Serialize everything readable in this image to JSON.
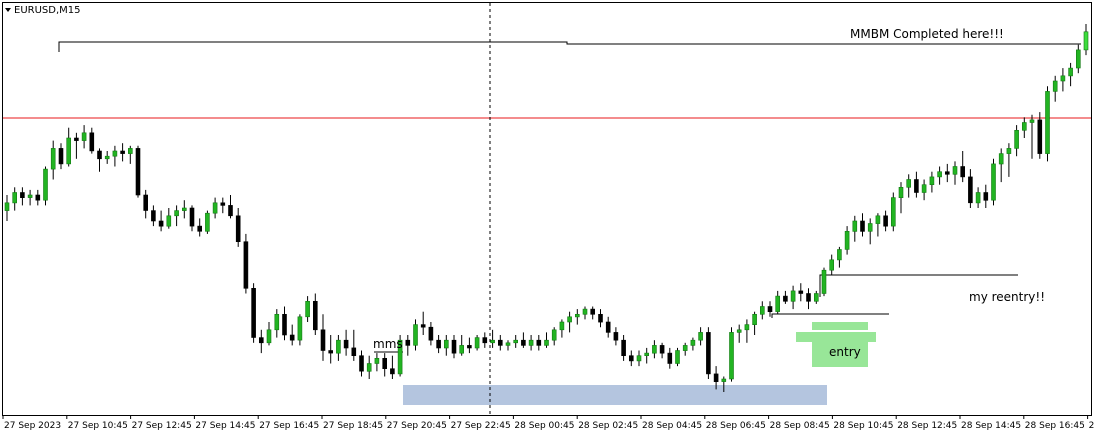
{
  "header": {
    "symbol_timeframe": "EURUSD,M15"
  },
  "chart_data": {
    "type": "candlestick",
    "symbol": "EURUSD",
    "timeframe": "M15",
    "x_tick_labels": [
      "27 Sep 2023",
      "27 Sep 10:45",
      "27 Sep 12:45",
      "27 Sep 14:45",
      "27 Sep 16:45",
      "27 Sep 18:45",
      "27 Sep 20:45",
      "27 Sep 22:45",
      "28 Sep 00:45",
      "28 Sep 02:45",
      "28 Sep 04:45",
      "28 Sep 06:45",
      "28 Sep 08:45",
      "28 Sep 10:45",
      "28 Sep 12:45",
      "28 Sep 14:45",
      "28 Sep 16:45",
      "2"
    ],
    "colors": {
      "bull": "#22b422",
      "bull_bright": "#3ddc3d",
      "bear": "#000000",
      "red_line": "#e8191b",
      "zone_blue": "#b4c5df",
      "zone_green": "#98e698",
      "background": "#ffffff"
    },
    "annotations": {
      "completed": "MMBM Completed here!!!",
      "reentry": "my reentry!!",
      "mms": "mms",
      "entry": "entry"
    },
    "candles": [
      [
        0.28,
        0.34,
        0.24,
        0.31
      ],
      [
        0.31,
        0.37,
        0.28,
        0.35
      ],
      [
        0.35,
        0.37,
        0.3,
        0.33
      ],
      [
        0.33,
        0.36,
        0.3,
        0.34
      ],
      [
        0.34,
        0.36,
        0.3,
        0.32
      ],
      [
        0.32,
        0.45,
        0.3,
        0.44
      ],
      [
        0.44,
        0.55,
        0.4,
        0.52
      ],
      [
        0.52,
        0.54,
        0.44,
        0.46
      ],
      [
        0.46,
        0.6,
        0.45,
        0.56
      ],
      [
        0.56,
        0.58,
        0.48,
        0.55
      ],
      [
        0.55,
        0.61,
        0.52,
        0.58
      ],
      [
        0.58,
        0.6,
        0.5,
        0.51
      ],
      [
        0.51,
        0.52,
        0.43,
        0.48
      ],
      [
        0.48,
        0.51,
        0.46,
        0.49
      ],
      [
        0.49,
        0.53,
        0.45,
        0.51
      ],
      [
        0.51,
        0.54,
        0.47,
        0.5
      ],
      [
        0.5,
        0.53,
        0.46,
        0.52
      ],
      [
        0.52,
        0.53,
        0.33,
        0.34
      ],
      [
        0.34,
        0.36,
        0.25,
        0.28
      ],
      [
        0.28,
        0.3,
        0.22,
        0.24
      ],
      [
        0.24,
        0.28,
        0.2,
        0.22
      ],
      [
        0.22,
        0.29,
        0.21,
        0.26
      ],
      [
        0.26,
        0.3,
        0.22,
        0.28
      ],
      [
        0.28,
        0.32,
        0.25,
        0.29
      ],
      [
        0.29,
        0.3,
        0.2,
        0.22
      ],
      [
        0.22,
        0.25,
        0.18,
        0.2
      ],
      [
        0.2,
        0.28,
        0.19,
        0.27
      ],
      [
        0.27,
        0.33,
        0.25,
        0.31
      ],
      [
        0.31,
        0.33,
        0.27,
        0.3
      ],
      [
        0.3,
        0.34,
        0.25,
        0.26
      ],
      [
        0.26,
        0.29,
        0.14,
        0.16
      ],
      [
        0.16,
        0.19,
        -0.04,
        -0.02
      ],
      [
        -0.02,
        0.0,
        -0.23,
        -0.21
      ],
      [
        -0.21,
        -0.18,
        -0.27,
        -0.23
      ],
      [
        -0.23,
        -0.15,
        -0.24,
        -0.18
      ],
      [
        -0.18,
        -0.1,
        -0.21,
        -0.12
      ],
      [
        -0.12,
        -0.09,
        -0.22,
        -0.2
      ],
      [
        -0.2,
        -0.16,
        -0.24,
        -0.22
      ],
      [
        -0.22,
        -0.12,
        -0.24,
        -0.13
      ],
      [
        -0.13,
        -0.05,
        -0.15,
        -0.07
      ],
      [
        -0.07,
        -0.04,
        -0.2,
        -0.18
      ],
      [
        -0.18,
        -0.12,
        -0.3,
        -0.26
      ],
      [
        -0.26,
        -0.2,
        -0.31,
        -0.27
      ],
      [
        -0.27,
        -0.2,
        -0.3,
        -0.22
      ],
      [
        -0.22,
        -0.18,
        -0.28,
        -0.25
      ],
      [
        -0.25,
        -0.18,
        -0.3,
        -0.28
      ],
      [
        -0.28,
        -0.26,
        -0.36,
        -0.34
      ],
      [
        -0.34,
        -0.28,
        -0.37,
        -0.31
      ],
      [
        -0.31,
        -0.27,
        -0.34,
        -0.29
      ],
      [
        -0.29,
        -0.27,
        -0.36,
        -0.33
      ],
      [
        -0.33,
        -0.28,
        -0.37,
        -0.35
      ],
      [
        -0.35,
        -0.2,
        -0.36,
        -0.22
      ],
      [
        -0.22,
        -0.2,
        -0.28,
        -0.24
      ],
      [
        -0.24,
        -0.14,
        -0.26,
        -0.16
      ],
      [
        -0.16,
        -0.11,
        -0.2,
        -0.17
      ],
      [
        -0.17,
        -0.15,
        -0.24,
        -0.22
      ],
      [
        -0.22,
        -0.2,
        -0.27,
        -0.25
      ],
      [
        -0.25,
        -0.2,
        -0.28,
        -0.22
      ],
      [
        -0.22,
        -0.2,
        -0.29,
        -0.27
      ],
      [
        -0.27,
        -0.2,
        -0.28,
        -0.24
      ],
      [
        -0.24,
        -0.21,
        -0.27,
        -0.25
      ],
      [
        -0.25,
        -0.2,
        -0.26,
        -0.21
      ],
      [
        -0.21,
        -0.19,
        -0.25,
        -0.23
      ],
      [
        -0.23,
        -0.18,
        -0.25,
        -0.22
      ],
      [
        -0.22,
        -0.2,
        -0.26,
        -0.24
      ],
      [
        -0.24,
        -0.22,
        -0.26,
        -0.23
      ],
      [
        -0.23,
        -0.2,
        -0.25,
        -0.22
      ],
      [
        -0.22,
        -0.19,
        -0.25,
        -0.24
      ],
      [
        -0.24,
        -0.2,
        -0.26,
        -0.22
      ],
      [
        -0.22,
        -0.2,
        -0.26,
        -0.24
      ],
      [
        -0.24,
        -0.19,
        -0.25,
        -0.22
      ],
      [
        -0.22,
        -0.17,
        -0.24,
        -0.18
      ],
      [
        -0.18,
        -0.14,
        -0.21,
        -0.15
      ],
      [
        -0.15,
        -0.11,
        -0.19,
        -0.13
      ],
      [
        -0.13,
        -0.1,
        -0.16,
        -0.12
      ],
      [
        -0.12,
        -0.09,
        -0.14,
        -0.1
      ],
      [
        -0.1,
        -0.09,
        -0.14,
        -0.12
      ],
      [
        -0.12,
        -0.1,
        -0.17,
        -0.15
      ],
      [
        -0.15,
        -0.13,
        -0.21,
        -0.19
      ],
      [
        -0.19,
        -0.17,
        -0.24,
        -0.22
      ],
      [
        -0.22,
        -0.2,
        -0.3,
        -0.28
      ],
      [
        -0.28,
        -0.26,
        -0.32,
        -0.3
      ],
      [
        -0.3,
        -0.26,
        -0.32,
        -0.28
      ],
      [
        -0.28,
        -0.25,
        -0.31,
        -0.27
      ],
      [
        -0.27,
        -0.22,
        -0.29,
        -0.24
      ],
      [
        -0.24,
        -0.23,
        -0.29,
        -0.27
      ],
      [
        -0.27,
        -0.25,
        -0.33,
        -0.31
      ],
      [
        -0.31,
        -0.25,
        -0.32,
        -0.26
      ],
      [
        -0.26,
        -0.23,
        -0.28,
        -0.24
      ],
      [
        -0.24,
        -0.21,
        -0.26,
        -0.22
      ],
      [
        -0.22,
        -0.17,
        -0.24,
        -0.19
      ],
      [
        -0.19,
        -0.17,
        -0.37,
        -0.35
      ],
      [
        -0.35,
        -0.32,
        -0.41,
        -0.38
      ],
      [
        -0.38,
        -0.36,
        -0.42,
        -0.37
      ],
      [
        -0.37,
        -0.17,
        -0.38,
        -0.19
      ],
      [
        -0.19,
        -0.16,
        -0.23,
        -0.18
      ],
      [
        -0.18,
        -0.14,
        -0.23,
        -0.16
      ],
      [
        -0.16,
        -0.11,
        -0.2,
        -0.12
      ],
      [
        -0.12,
        -0.07,
        -0.14,
        -0.09
      ],
      [
        -0.09,
        -0.07,
        -0.13,
        -0.11
      ],
      [
        -0.11,
        -0.03,
        -0.12,
        -0.05
      ],
      [
        -0.05,
        -0.03,
        -0.08,
        -0.07
      ],
      [
        -0.07,
        -0.01,
        -0.1,
        -0.03
      ],
      [
        -0.03,
        0.0,
        -0.07,
        -0.04
      ],
      [
        -0.04,
        -0.02,
        -0.1,
        -0.07
      ],
      [
        -0.07,
        -0.03,
        -0.08,
        -0.04
      ],
      [
        -0.04,
        0.06,
        -0.05,
        0.05
      ],
      [
        0.05,
        0.11,
        0.03,
        0.09
      ],
      [
        0.09,
        0.14,
        0.06,
        0.13
      ],
      [
        0.13,
        0.22,
        0.11,
        0.2
      ],
      [
        0.2,
        0.26,
        0.16,
        0.24
      ],
      [
        0.24,
        0.27,
        0.18,
        0.2
      ],
      [
        0.2,
        0.25,
        0.15,
        0.23
      ],
      [
        0.23,
        0.27,
        0.18,
        0.26
      ],
      [
        0.26,
        0.28,
        0.2,
        0.22
      ],
      [
        0.22,
        0.35,
        0.2,
        0.33
      ],
      [
        0.33,
        0.39,
        0.27,
        0.37
      ],
      [
        0.37,
        0.42,
        0.33,
        0.4
      ],
      [
        0.4,
        0.43,
        0.33,
        0.35
      ],
      [
        0.35,
        0.4,
        0.32,
        0.38
      ],
      [
        0.38,
        0.43,
        0.35,
        0.41
      ],
      [
        0.41,
        0.45,
        0.38,
        0.43
      ],
      [
        0.43,
        0.46,
        0.39,
        0.42
      ],
      [
        0.42,
        0.47,
        0.38,
        0.45
      ],
      [
        0.45,
        0.51,
        0.39,
        0.41
      ],
      [
        0.41,
        0.44,
        0.29,
        0.31
      ],
      [
        0.31,
        0.37,
        0.29,
        0.35
      ],
      [
        0.35,
        0.38,
        0.29,
        0.32
      ],
      [
        0.32,
        0.48,
        0.3,
        0.46
      ],
      [
        0.46,
        0.52,
        0.39,
        0.5
      ],
      [
        0.5,
        0.54,
        0.41,
        0.52
      ],
      [
        0.52,
        0.61,
        0.49,
        0.59
      ],
      [
        0.59,
        0.64,
        0.56,
        0.62
      ],
      [
        0.62,
        0.65,
        0.48,
        0.63
      ],
      [
        0.63,
        0.66,
        0.48,
        0.5
      ],
      [
        0.5,
        0.76,
        0.47,
        0.74
      ],
      [
        0.74,
        0.8,
        0.7,
        0.78
      ],
      [
        0.78,
        0.83,
        0.74,
        0.8
      ],
      [
        0.8,
        0.85,
        0.76,
        0.83
      ],
      [
        0.83,
        0.92,
        0.81,
        0.9
      ],
      [
        0.9,
        1.0,
        0.88,
        0.97
      ]
    ]
  }
}
